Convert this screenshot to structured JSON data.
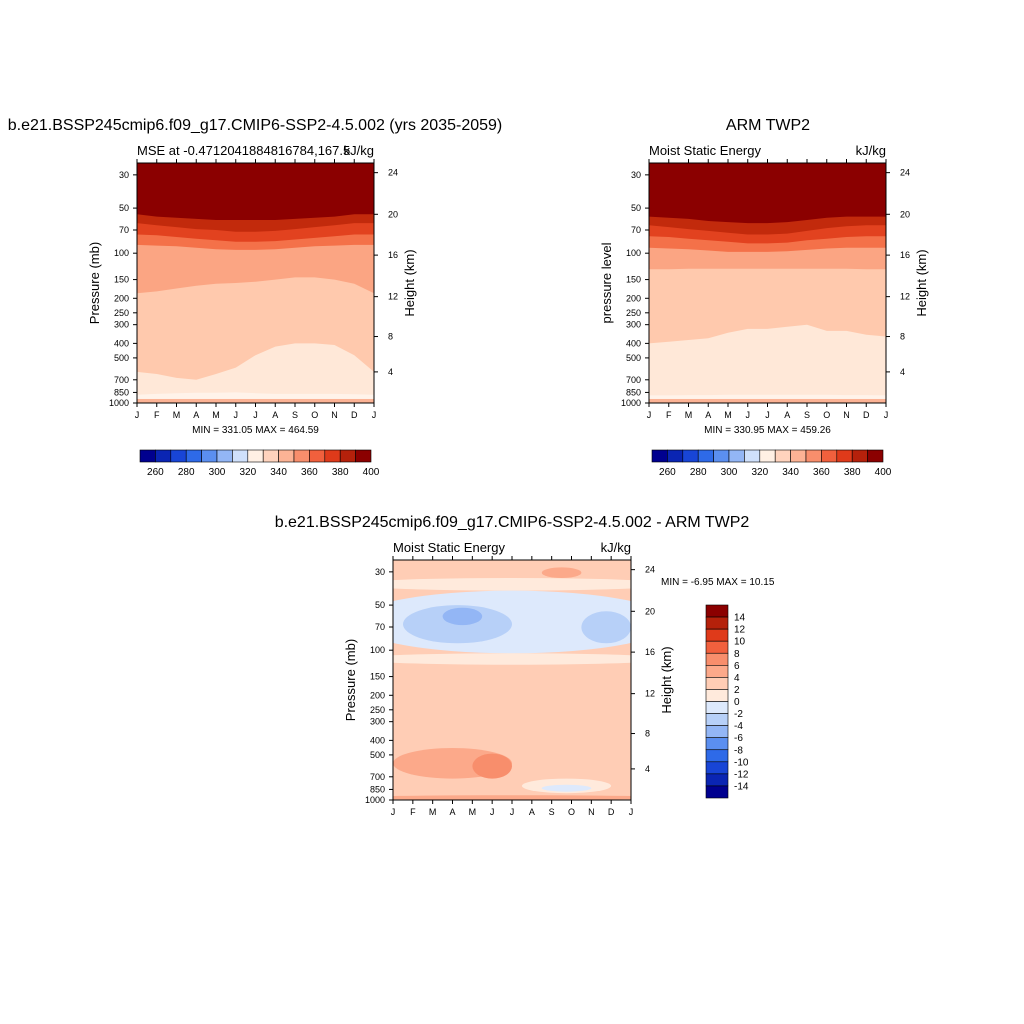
{
  "colors": {
    "abs_scale": [
      "#00008f",
      "#0a25b3",
      "#1845d6",
      "#2e6ae8",
      "#5b8ff0",
      "#93b6f5",
      "#cfe0fb",
      "#fff0e4",
      "#ffd3bd",
      "#fcb395",
      "#f88e6c",
      "#f1603d",
      "#df3a1a",
      "#b5210b",
      "#8b0000"
    ],
    "diff_scale": [
      "#00008f",
      "#0a25b3",
      "#1845d6",
      "#2e6ae8",
      "#5b8ff0",
      "#93b6f5",
      "#b7d0f8",
      "#dde9fc",
      "#ffeadc",
      "#ffcdb5",
      "#fca98a",
      "#f88e6c",
      "#f1603d",
      "#df3a1a",
      "#b5210b",
      "#8b0000"
    ]
  },
  "chart_data": [
    {
      "type": "heatmap",
      "title": "b.e21.BSSP245cmip6.f09_g17.CMIP6-SSP2-4.5.002 (yrs 2035-2059)",
      "subtitle_left": "MSE at -0.4712041884816784,167.5",
      "subtitle_right": "kJ/kg",
      "ylabel": "Pressure (mb)",
      "ylabel_right": "Height (km)",
      "x": [
        "J",
        "F",
        "M",
        "A",
        "M",
        "J",
        "J",
        "A",
        "S",
        "O",
        "N",
        "D",
        "J"
      ],
      "y_ticks": [
        "30",
        "50",
        "70",
        "100",
        "150",
        "200",
        "250",
        "300",
        "400",
        "500",
        "700",
        "850",
        "1000"
      ],
      "y_ticks_right": [
        "24",
        "20",
        "16",
        "12",
        "8",
        "4"
      ],
      "note": "MIN = 331.05 MAX = 464.59",
      "colorbar_labels": [
        "260",
        "280",
        "300",
        "320",
        "340",
        "360",
        "380",
        "400"
      ],
      "contour_boundaries_mb": [
        {
          "level": 460,
          "p": [
            55,
            57,
            58,
            59,
            60,
            60,
            60,
            60,
            59,
            58,
            57,
            55,
            55
          ]
        },
        {
          "level": 440,
          "p": [
            63,
            65,
            67,
            69,
            70,
            72,
            72,
            71,
            69,
            67,
            65,
            63,
            63
          ]
        },
        {
          "level": 420,
          "p": [
            75,
            76,
            78,
            80,
            82,
            84,
            84,
            83,
            81,
            79,
            77,
            75,
            75
          ]
        },
        {
          "level": 400,
          "p": [
            88,
            89,
            90,
            92,
            94,
            95,
            95,
            94,
            92,
            90,
            89,
            88,
            88
          ]
        },
        {
          "level": 380,
          "p": [
            185,
            180,
            172,
            165,
            160,
            158,
            155,
            150,
            145,
            145,
            150,
            160,
            185
          ]
        },
        {
          "level": 360,
          "p": [
            620,
            640,
            680,
            700,
            640,
            580,
            480,
            420,
            400,
            400,
            410,
            480,
            620
          ]
        },
        {
          "level": 340,
          "p": [
            880,
            870,
            860,
            855,
            855,
            850,
            860,
            870,
            870,
            870,
            870,
            875,
            880
          ]
        }
      ]
    },
    {
      "type": "heatmap",
      "title": "ARM TWP2",
      "subtitle_left": "Moist Static Energy",
      "subtitle_right": "kJ/kg",
      "ylabel": "pressure level",
      "ylabel_right": "Height (km)",
      "x": [
        "J",
        "F",
        "M",
        "A",
        "M",
        "J",
        "J",
        "A",
        "S",
        "O",
        "N",
        "D",
        "J"
      ],
      "y_ticks": [
        "30",
        "50",
        "70",
        "100",
        "150",
        "200",
        "250",
        "300",
        "400",
        "500",
        "700",
        "850",
        "1000"
      ],
      "y_ticks_right": [
        "24",
        "20",
        "16",
        "12",
        "8",
        "4"
      ],
      "note": "MIN = 330.95 MAX = 459.26",
      "colorbar_labels": [
        "260",
        "280",
        "300",
        "320",
        "340",
        "360",
        "380",
        "400"
      ],
      "contour_boundaries_mb": [
        {
          "level": 460,
          "p": [
            57,
            58,
            59,
            61,
            62,
            63,
            63,
            62,
            60,
            58,
            57,
            57,
            57
          ]
        },
        {
          "level": 440,
          "p": [
            65,
            67,
            69,
            71,
            73,
            75,
            75,
            74,
            71,
            68,
            66,
            65,
            65
          ]
        },
        {
          "level": 420,
          "p": [
            77,
            78,
            80,
            82,
            84,
            86,
            86,
            85,
            82,
            80,
            78,
            77,
            77
          ]
        },
        {
          "level": 400,
          "p": [
            92,
            93,
            94,
            96,
            98,
            98,
            98,
            97,
            95,
            93,
            92,
            92,
            92
          ]
        },
        {
          "level": 380,
          "p": [
            128,
            128,
            127,
            127,
            127,
            127,
            127,
            127,
            127,
            127,
            127,
            128,
            128
          ]
        },
        {
          "level": 360,
          "p": [
            400,
            390,
            380,
            370,
            340,
            320,
            320,
            310,
            300,
            330,
            330,
            350,
            360
          ]
        },
        {
          "level": 340,
          "p": [
            890,
            890,
            885,
            885,
            880,
            880,
            880,
            880,
            880,
            880,
            885,
            885,
            890
          ]
        }
      ]
    },
    {
      "type": "heatmap",
      "title": "b.e21.BSSP245cmip6.f09_g17.CMIP6-SSP2-4.5.002 - ARM TWP2",
      "subtitle_left": "Moist Static Energy",
      "subtitle_right": "kJ/kg",
      "ylabel": "Pressure (mb)",
      "ylabel_right": "Height (km)",
      "x": [
        "J",
        "F",
        "M",
        "A",
        "M",
        "J",
        "J",
        "A",
        "S",
        "O",
        "N",
        "D",
        "J"
      ],
      "y_ticks": [
        "30",
        "50",
        "70",
        "100",
        "150",
        "200",
        "250",
        "300",
        "400",
        "500",
        "700",
        "850",
        "1000"
      ],
      "y_ticks_right": [
        "24",
        "20",
        "16",
        "12",
        "8",
        "4"
      ],
      "note": "MIN =  -6.95 MAX =  10.15",
      "colorbar_labels": [
        "14",
        "12",
        "10",
        "8",
        "6",
        "4",
        "2",
        "0",
        "-2",
        "-4",
        "-6",
        "-8",
        "-10",
        "-12",
        "-14"
      ],
      "background_level": 3,
      "contour_blobs": [
        {
          "level": 5,
          "month_range": [
            7.5,
            9.5
          ],
          "p_range": [
            28,
            33
          ]
        },
        {
          "level": 1,
          "month_range": [
            0,
            12
          ],
          "p_range": [
            33,
            40
          ]
        },
        {
          "level": -1,
          "month_range": [
            0,
            12
          ],
          "p_range": [
            40,
            105
          ]
        },
        {
          "level": -3,
          "month_range": [
            0.5,
            6
          ],
          "p_range": [
            50,
            90
          ]
        },
        {
          "level": -3,
          "month_range": [
            9.5,
            12
          ],
          "p_range": [
            55,
            90
          ]
        },
        {
          "level": -5,
          "month_range": [
            2.5,
            4.5
          ],
          "p_range": [
            52,
            68
          ]
        },
        {
          "level": 1,
          "month_range": [
            0,
            12
          ],
          "p_range": [
            105,
            125
          ]
        },
        {
          "level": 2.5,
          "month_range": [
            8.5,
            12
          ],
          "p_range": [
            160,
            480
          ]
        },
        {
          "level": 5,
          "month_range": [
            0,
            6
          ],
          "p_range": [
            450,
            720
          ]
        },
        {
          "level": 7,
          "month_range": [
            4,
            6
          ],
          "p_range": [
            490,
            720
          ]
        },
        {
          "level": 1,
          "month_range": [
            6.5,
            11
          ],
          "p_range": [
            720,
            900
          ]
        },
        {
          "level": -1,
          "month_range": [
            7.5,
            10
          ],
          "p_range": [
            790,
            880
          ]
        },
        {
          "level": 5,
          "month_range": [
            0,
            12
          ],
          "p_range": [
            930,
            1000
          ]
        }
      ]
    }
  ]
}
